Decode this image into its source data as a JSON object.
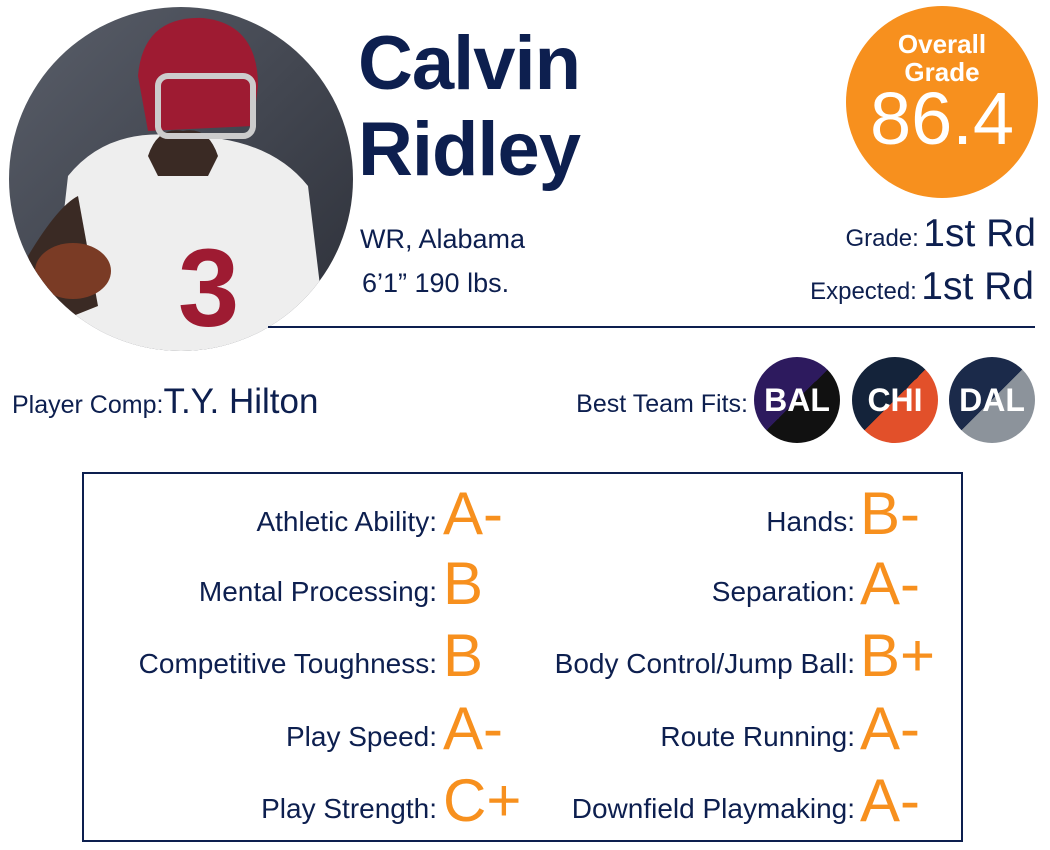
{
  "player": {
    "first_name": "Calvin",
    "last_name": "Ridley",
    "position_school": "WR, Alabama",
    "size": "6’1” 190 lbs."
  },
  "overall": {
    "label_line1": "Overall",
    "label_line2": "Grade",
    "value": 86.4
  },
  "grade": {
    "label": "Grade:",
    "value": "1st Rd"
  },
  "expected": {
    "label": "Expected:",
    "value": "1st Rd"
  },
  "comp": {
    "label": "Player Comp:",
    "value": "T.Y. Hilton"
  },
  "team_fits": {
    "label": "Best Team Fits:",
    "teams": [
      "BAL",
      "CHI",
      "DAL"
    ]
  },
  "traits": {
    "left": [
      {
        "label": "Athletic Ability:",
        "grade": "A-"
      },
      {
        "label": "Mental Processing:",
        "grade": "B"
      },
      {
        "label": "Competitive Toughness:",
        "grade": "B"
      },
      {
        "label": "Play Speed:",
        "grade": "A-"
      },
      {
        "label": "Play Strength:",
        "grade": "C+"
      }
    ],
    "right": [
      {
        "label": "Hands:",
        "grade": "B-"
      },
      {
        "label": "Separation:",
        "grade": "A-"
      },
      {
        "label": "Body Control/Jump Ball:",
        "grade": "B+"
      },
      {
        "label": "Route Running:",
        "grade": "A-"
      },
      {
        "label": "Downfield Playmaking:",
        "grade": "A-"
      }
    ]
  }
}
